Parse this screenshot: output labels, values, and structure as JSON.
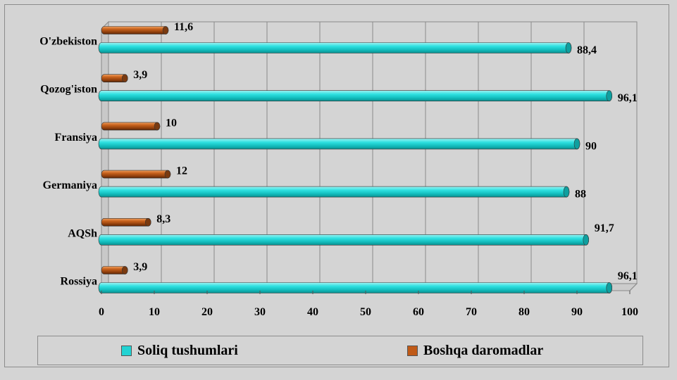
{
  "chart_data": {
    "type": "bar",
    "orientation": "horizontal",
    "style": "3d-cylinder",
    "categories": [
      "O'zbekiston",
      "Qozog'iston",
      "Fransiya",
      "Germaniya",
      "AQSh",
      "Rossiya"
    ],
    "series": [
      {
        "name": "Soliq tushumlari",
        "color": "#22d3d3",
        "values": [
          88.4,
          96.1,
          90,
          88,
          91.7,
          96.1
        ],
        "labels": [
          "88,4",
          "96,1",
          "90",
          "88",
          "91,7",
          "96,1"
        ]
      },
      {
        "name": "Boshqa daromadlar",
        "color": "#c05a17",
        "values": [
          11.6,
          3.9,
          10,
          12,
          8.3,
          3.9
        ],
        "labels": [
          "11,6",
          "3,9",
          "10",
          "12",
          "8,3",
          "3,9"
        ]
      }
    ],
    "xlim": [
      0,
      100
    ],
    "xticks": [
      "0",
      "10",
      "20",
      "30",
      "40",
      "50",
      "60",
      "70",
      "80",
      "90",
      "100"
    ],
    "grid": true,
    "legend": "bottom"
  }
}
